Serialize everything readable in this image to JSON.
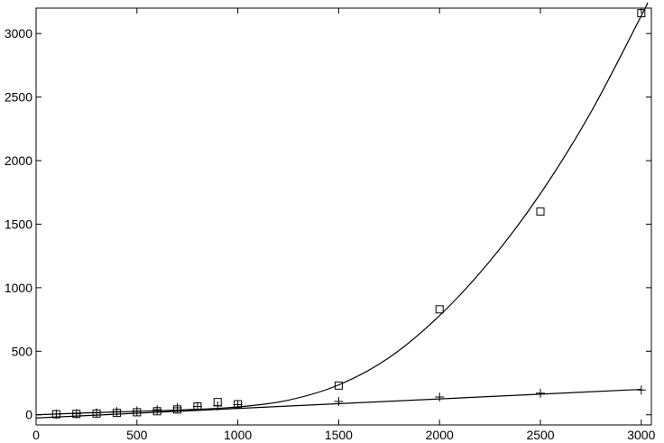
{
  "chart_data": {
    "type": "scatter",
    "title": "",
    "xlabel": "",
    "ylabel": "",
    "xlim": [
      0,
      3050
    ],
    "ylim": [
      -80,
      3200
    ],
    "grid": false,
    "legend": "none",
    "x_ticks": [
      0,
      500,
      1000,
      1500,
      2000,
      2500,
      3000
    ],
    "y_ticks": [
      0,
      500,
      1000,
      1500,
      2000,
      2500,
      3000
    ],
    "x_tick_labels": [
      "0",
      "500",
      "1000",
      "1500",
      "2000",
      "2500",
      "3000"
    ],
    "y_tick_labels": [
      "0",
      "500",
      "1000",
      "1500",
      "2000",
      "2500",
      "3000"
    ],
    "series": [
      {
        "marker": "square",
        "color": "#000000",
        "points": [
          [
            100,
            5
          ],
          [
            200,
            7
          ],
          [
            300,
            10
          ],
          [
            400,
            15
          ],
          [
            500,
            20
          ],
          [
            600,
            28
          ],
          [
            700,
            42
          ],
          [
            800,
            65
          ],
          [
            900,
            100
          ],
          [
            1000,
            83
          ],
          [
            1500,
            230
          ],
          [
            2000,
            830
          ],
          [
            2500,
            1600
          ],
          [
            3000,
            3160
          ]
        ],
        "fit": {
          "kind": "cubic",
          "points": [
            [
              0,
              0
            ],
            [
              250,
              15
            ],
            [
              500,
              27
            ],
            [
              750,
              40
            ],
            [
              1000,
              62
            ],
            [
              1250,
              115
            ],
            [
              1500,
              235
            ],
            [
              1750,
              450
            ],
            [
              2000,
              780
            ],
            [
              2250,
              1210
            ],
            [
              2500,
              1740
            ],
            [
              2750,
              2380
            ],
            [
              3000,
              3140
            ],
            [
              3030,
              3240
            ]
          ]
        }
      },
      {
        "marker": "plus",
        "color": "#000000",
        "points": [
          [
            100,
            5
          ],
          [
            200,
            8
          ],
          [
            300,
            15
          ],
          [
            400,
            25
          ],
          [
            500,
            30
          ],
          [
            600,
            40
          ],
          [
            700,
            55
          ],
          [
            800,
            65
          ],
          [
            900,
            70
          ],
          [
            1000,
            80
          ],
          [
            1500,
            105
          ],
          [
            2000,
            140
          ],
          [
            2500,
            170
          ],
          [
            3000,
            195
          ]
        ],
        "fit": {
          "kind": "linear",
          "points": [
            [
              0,
              -25
            ],
            [
              3000,
              200
            ]
          ]
        }
      }
    ]
  }
}
